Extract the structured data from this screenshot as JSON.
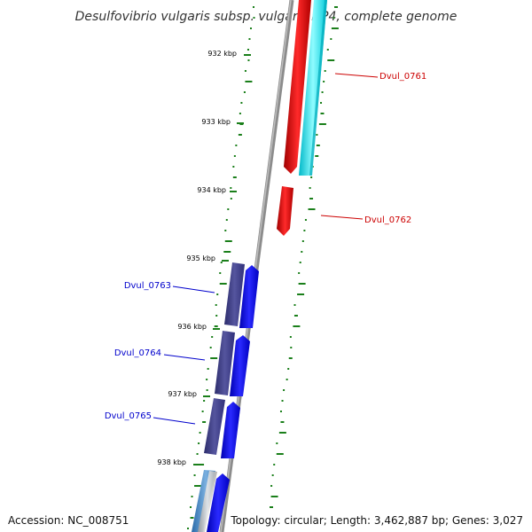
{
  "title": "Desulfovibrio vulgaris subsp. vulgaris DP4, complete genome",
  "ruler": {
    "labels": [
      "932 kbp",
      "933 kbp",
      "934 kbp",
      "935 kbp",
      "936 kbp",
      "937 kbp",
      "938 kbp"
    ]
  },
  "genes": [
    {
      "label": "Dvul_0761",
      "color": "#cc0000"
    },
    {
      "label": "Dvul_0762",
      "color": "#cc0000"
    },
    {
      "label": "Dvul_0763",
      "color": "#0000cc"
    },
    {
      "label": "Dvul_0764",
      "color": "#0000cc"
    },
    {
      "label": "Dvul_0765",
      "color": "#0000cc"
    }
  ],
  "colors": {
    "forward_strand": "#ff0000",
    "forward_strand_secondary": "#00ffff",
    "reverse_strand": "#0000ff",
    "reverse_strand_secondary": "#3f3f8c",
    "backbone": "#888888",
    "gc_ticks": "#1a7f1a"
  },
  "footer": {
    "accession": "Accession: NC_008751",
    "summary": "Topology: circular; Length: 3,462,887 bp; Genes: 3,027"
  }
}
